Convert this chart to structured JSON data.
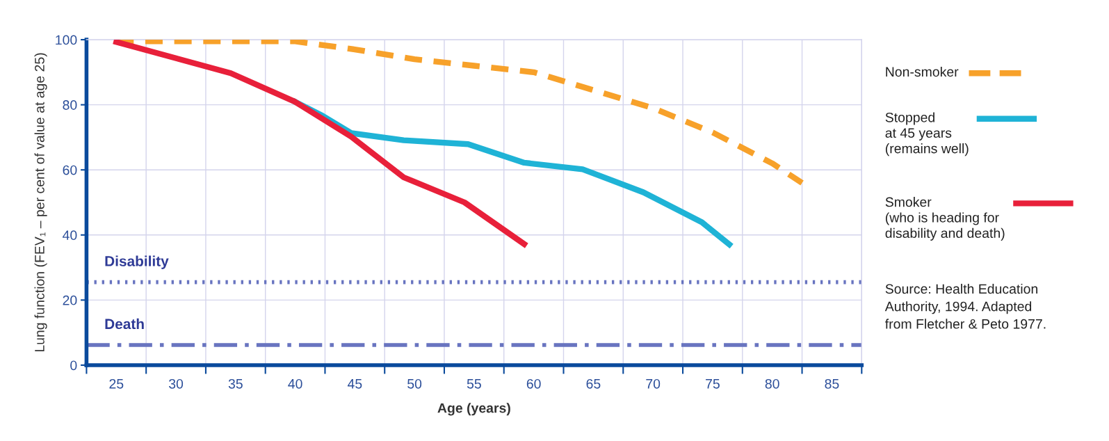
{
  "chart_data": {
    "type": "line",
    "xlabel": "Age (years)",
    "ylabel": "Lung function (FEV₁ – per cent of value at age 25)",
    "xlim": [
      22.5,
      87.5
    ],
    "ylim": [
      0,
      100
    ],
    "yticks": [
      0,
      20,
      40,
      60,
      80,
      100
    ],
    "xticks": [
      {
        "value": 22.5,
        "label": null
      },
      25,
      {
        "value": 27.5,
        "label": null
      },
      30,
      {
        "value": 32.5,
        "label": null
      },
      35,
      {
        "value": 37.5,
        "label": null
      },
      40,
      {
        "value": 42.5,
        "label": null
      },
      45,
      {
        "value": 47.5,
        "label": null
      },
      50,
      {
        "value": 52.5,
        "label": null
      },
      55,
      {
        "value": 57.5,
        "label": null
      },
      60,
      {
        "value": 62.5,
        "label": null
      },
      65,
      {
        "value": 67.5,
        "label": null
      },
      70,
      {
        "value": 72.5,
        "label": null
      },
      75,
      {
        "value": 77.5,
        "label": null
      },
      80,
      {
        "value": 82.5,
        "label": null
      },
      85,
      {
        "value": 87.5,
        "label": null
      }
    ],
    "grid": true,
    "legend": "right",
    "series": [
      {
        "name": "Non-smoker",
        "color": "#f7a12a",
        "line_style": "dashed",
        "x": [
          25,
          30,
          35,
          40,
          45,
          50,
          55,
          60,
          65,
          70,
          75,
          80,
          82.5
        ],
        "values": [
          99.5,
          99.5,
          99.5,
          99.5,
          97,
          94,
          92,
          90,
          84.5,
          79,
          71.5,
          62,
          56
        ]
      },
      {
        "name": "Stopped\nat 45 years\n(remains well)",
        "color": "#1fb3d6",
        "line_style": "solid",
        "x": [
          40,
          42.3,
          44.7,
          49.1,
          54.5,
          59.2,
          64.1,
          69.2,
          74.1,
          76.4
        ],
        "values": [
          80.9,
          76.6,
          71.3,
          69.1,
          67.9,
          62.2,
          60.2,
          53.1,
          43.9,
          37.1
        ]
      },
      {
        "name": "Smoker\n(who is heading for\ndisability and death)",
        "color": "#e8203a",
        "line_style": "solid",
        "x": [
          25,
          34.6,
          40,
          44.7,
          49.1,
          54.2,
          59.2
        ],
        "values": [
          99.3,
          89.7,
          80.9,
          70.2,
          57.7,
          50,
          37.2
        ]
      }
    ],
    "ref_lines": [
      {
        "axis": "y",
        "value": 25.5,
        "label": "Disability",
        "color": "#6874c0",
        "line_style": "dotted"
      },
      {
        "axis": "y",
        "value": 6.2,
        "label": "Death",
        "color": "#6874c0",
        "line_style": "dashdot"
      }
    ],
    "annotations": [
      "Source: Health Education\nAuthority, 1994. Adapted\nfrom Fletcher & Peto 1977."
    ]
  }
}
